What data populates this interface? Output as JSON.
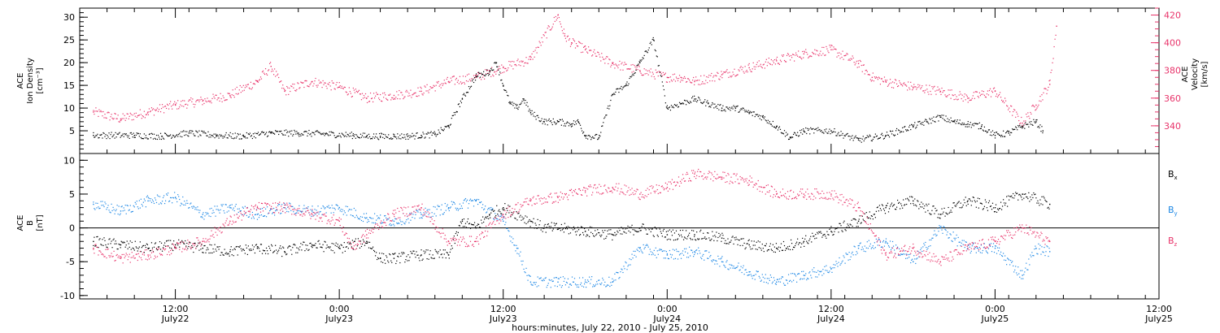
{
  "chart_data": [
    {
      "type": "scatter",
      "panel": "plasma",
      "left_axis": {
        "label": [
          "ACE",
          "Ion Density",
          "[cm⁻³]"
        ],
        "ylim": [
          0,
          32
        ],
        "ticks": [
          5,
          10,
          15,
          20,
          25,
          30
        ]
      },
      "right_axis": {
        "label": [
          "ACE",
          "Velocity",
          "[km/s]"
        ],
        "ylim": [
          320,
          425
        ],
        "ticks": [
          340,
          360,
          380,
          400,
          420
        ]
      },
      "series": [
        {
          "axis": "left",
          "color": "#000000",
          "x": [
            6,
            9,
            11,
            13,
            15,
            17,
            19,
            21,
            23,
            25,
            26,
            27,
            28,
            29,
            30,
            31,
            32,
            33,
            34,
            35,
            35.5,
            36,
            36.5,
            37,
            37.5,
            38,
            39,
            40,
            41,
            41.5,
            42,
            43,
            44,
            45,
            46,
            47,
            48,
            49,
            50,
            51,
            52,
            53,
            54,
            55,
            56,
            57,
            58,
            60,
            62,
            64,
            66,
            67,
            68,
            69,
            70,
            71,
            72,
            73,
            74,
            75,
            75.5
          ],
          "y": [
            4,
            4,
            3.8,
            4.5,
            4,
            3.8,
            4.5,
            4.5,
            4.3,
            4,
            3.8,
            3.8,
            3.8,
            3.8,
            4,
            4.2,
            6,
            12,
            17,
            18,
            20,
            15,
            11,
            10,
            12,
            9,
            7,
            7,
            6.5,
            7,
            4,
            3.5,
            13,
            15,
            20,
            25,
            10,
            11,
            12,
            11,
            10,
            10,
            9,
            8,
            6,
            3.5,
            5,
            5,
            3,
            4,
            6,
            7,
            8,
            7,
            6.5,
            6,
            4,
            4.5,
            6,
            7,
            5
          ]
        },
        {
          "axis": "right",
          "color": "#e8336a",
          "x": [
            6,
            8,
            10,
            12,
            14,
            16,
            18,
            19,
            20,
            22,
            24,
            26,
            28,
            30,
            32,
            34,
            36,
            38,
            40,
            40.5,
            41,
            42,
            44,
            46,
            48,
            49,
            50,
            52,
            54,
            56,
            58,
            60,
            62,
            63,
            64,
            66,
            68,
            70,
            72,
            74,
            75,
            76,
            76.5
          ],
          "y": [
            350,
            345,
            350,
            355,
            358,
            362,
            372,
            383,
            365,
            372,
            368,
            360,
            362,
            365,
            372,
            375,
            382,
            388,
            420,
            405,
            400,
            395,
            385,
            380,
            375,
            375,
            372,
            377,
            382,
            387,
            392,
            395,
            385,
            375,
            372,
            368,
            365,
            360,
            365,
            342,
            355,
            370,
            412
          ]
        }
      ]
    },
    {
      "type": "scatter",
      "panel": "magnetic field",
      "left_axis": {
        "label": [
          "ACE",
          "B",
          "[nT]"
        ],
        "ylim": [
          -10.5,
          11
        ],
        "ticks": [
          -10,
          -5,
          0,
          5,
          10
        ]
      },
      "zero_line": true,
      "legend": {
        "placement": "right",
        "entries": [
          {
            "name": "B",
            "sub": "x",
            "color": "#000000"
          },
          {
            "name": "B",
            "sub": "y",
            "color": "#1e88e5"
          },
          {
            "name": "B",
            "sub": "z",
            "color": "#e8336a"
          }
        ]
      },
      "series": [
        {
          "name": "Bx",
          "color": "#000000",
          "x": [
            6,
            8,
            10,
            12,
            14,
            16,
            18,
            20,
            22,
            24,
            26,
            27,
            28,
            30,
            32,
            33,
            34,
            35,
            36,
            38,
            39,
            40,
            42,
            44,
            46,
            48,
            50,
            52,
            54,
            56,
            58,
            60,
            62,
            64,
            66,
            68,
            70,
            72,
            74,
            76
          ],
          "y": [
            -2,
            -2.5,
            -3,
            -2.5,
            -3,
            -3.5,
            -3,
            -3.5,
            -2.5,
            -3,
            -2,
            -4.5,
            -4.5,
            -4,
            -4,
            1,
            0,
            2,
            3,
            1,
            0,
            0,
            -0.5,
            -1,
            0,
            -1,
            -1,
            -1.5,
            -2.5,
            -3,
            -2,
            -0.5,
            1,
            3,
            4,
            2,
            4,
            3,
            5,
            3.5
          ]
        },
        {
          "name": "By",
          "color": "#1e88e5",
          "x": [
            6,
            8,
            10,
            12,
            14,
            16,
            18,
            20,
            22,
            24,
            26,
            28,
            30,
            32,
            34,
            36,
            37,
            38,
            40,
            42,
            44,
            46,
            48,
            50,
            52,
            54,
            56,
            58,
            60,
            62,
            64,
            66,
            68,
            70,
            72,
            74,
            75,
            76
          ],
          "y": [
            3.5,
            2.5,
            4,
            4.5,
            2,
            3,
            2,
            3,
            2.5,
            3,
            1.5,
            1,
            2,
            3,
            4,
            1,
            -3,
            -8,
            -8,
            -8,
            -8,
            -3,
            -4,
            -3.5,
            -5,
            -6.5,
            -8,
            -7,
            -6,
            -3,
            -2,
            -5,
            0,
            -3,
            -3,
            -7,
            -3,
            -3.5
          ]
        },
        {
          "name": "Bz",
          "color": "#e8336a",
          "x": [
            6,
            8,
            10,
            12,
            14,
            16,
            18,
            20,
            22,
            24,
            25,
            26,
            28,
            30,
            32,
            34,
            36,
            38,
            40,
            42,
            44,
            46,
            48,
            50,
            52,
            54,
            56,
            58,
            60,
            62,
            64,
            66,
            68,
            70,
            72,
            74,
            76
          ],
          "y": [
            -3,
            -4.5,
            -4,
            -3,
            -2,
            1,
            3,
            3,
            2,
            1,
            -3,
            -1,
            2,
            3,
            -2,
            -2,
            2,
            4,
            4.5,
            5.5,
            6,
            5,
            6,
            8,
            7.5,
            7,
            5,
            5,
            5,
            3,
            -4,
            -3,
            -5,
            -3,
            -2,
            0,
            -2
          ]
        }
      ]
    }
  ],
  "x_axis": {
    "xlim": [
      5,
      84
    ],
    "ticks": [
      {
        "x": 12,
        "time": "12:00",
        "day": "July22"
      },
      {
        "x": 24,
        "time": "0:00",
        "day": "July23"
      },
      {
        "x": 36,
        "time": "12:00",
        "day": "July23"
      },
      {
        "x": 48,
        "time": "0:00",
        "day": "July24"
      },
      {
        "x": 60,
        "time": "12:00",
        "day": "July24"
      },
      {
        "x": 72,
        "time": "0:00",
        "day": "July25"
      },
      {
        "x": 84,
        "time": "12:00",
        "day": "July25"
      }
    ],
    "title": "hours:minutes, July 22, 2010 - July 25, 2010"
  }
}
